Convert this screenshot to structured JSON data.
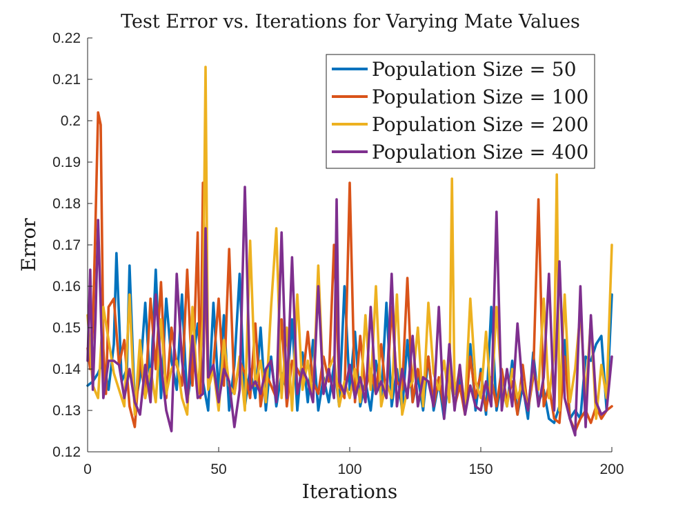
{
  "chart_data": {
    "type": "line",
    "title": "Test Error vs. Iterations for Varying Mate Values",
    "xlabel": "Iterations",
    "ylabel": "Error",
    "xlim": [
      0,
      200
    ],
    "ylim": [
      0.12,
      0.22
    ],
    "xticks": [
      0,
      50,
      100,
      150,
      200
    ],
    "xtick_labels": [
      "0",
      "50",
      "100",
      "150",
      "200"
    ],
    "yticks": [
      0.12,
      0.13,
      0.14,
      0.15,
      0.16,
      0.17,
      0.18,
      0.19,
      0.2,
      0.21,
      0.22
    ],
    "ytick_labels": [
      "0.12",
      "0.13",
      "0.14",
      "0.15",
      "0.16",
      "0.17",
      "0.18",
      "0.19",
      "0.2",
      "0.21",
      "0.22"
    ],
    "grid": false,
    "legend_position": "top-right",
    "series": [
      {
        "name": "Population Size = 50",
        "color": "#0072BD",
        "x": [
          0,
          2,
          4,
          6,
          8,
          10,
          11,
          13,
          15,
          16,
          18,
          20,
          22,
          24,
          26,
          28,
          30,
          32,
          34,
          36,
          38,
          40,
          42,
          44,
          46,
          48,
          50,
          52,
          54,
          56,
          58,
          60,
          62,
          64,
          66,
          68,
          70,
          72,
          74,
          76,
          78,
          80,
          82,
          84,
          86,
          88,
          90,
          92,
          94,
          96,
          98,
          100,
          102,
          104,
          106,
          108,
          110,
          112,
          114,
          116,
          118,
          120,
          122,
          124,
          126,
          128,
          130,
          132,
          134,
          136,
          138,
          140,
          142,
          144,
          146,
          148,
          150,
          152,
          154,
          156,
          158,
          160,
          162,
          164,
          166,
          168,
          170,
          172,
          174,
          176,
          178,
          180,
          182,
          184,
          186,
          188,
          190,
          192,
          194,
          196,
          198,
          200
        ],
        "y": [
          0.136,
          0.137,
          0.139,
          0.142,
          0.135,
          0.146,
          0.168,
          0.137,
          0.14,
          0.165,
          0.131,
          0.138,
          0.156,
          0.135,
          0.164,
          0.133,
          0.157,
          0.142,
          0.135,
          0.158,
          0.132,
          0.141,
          0.151,
          0.137,
          0.13,
          0.156,
          0.134,
          0.153,
          0.13,
          0.141,
          0.163,
          0.131,
          0.14,
          0.133,
          0.15,
          0.13,
          0.143,
          0.131,
          0.139,
          0.135,
          0.152,
          0.13,
          0.144,
          0.132,
          0.147,
          0.13,
          0.138,
          0.132,
          0.141,
          0.131,
          0.16,
          0.135,
          0.149,
          0.131,
          0.137,
          0.13,
          0.142,
          0.133,
          0.156,
          0.131,
          0.14,
          0.13,
          0.147,
          0.132,
          0.138,
          0.13,
          0.143,
          0.13,
          0.137,
          0.128,
          0.14,
          0.131,
          0.138,
          0.13,
          0.146,
          0.13,
          0.14,
          0.129,
          0.155,
          0.13,
          0.137,
          0.131,
          0.142,
          0.129,
          0.136,
          0.128,
          0.144,
          0.132,
          0.135,
          0.128,
          0.127,
          0.131,
          0.147,
          0.128,
          0.13,
          0.128,
          0.143,
          0.142,
          0.146,
          0.148,
          0.13,
          0.158
        ]
      },
      {
        "name": "Population Size = 100",
        "color": "#D95319",
        "x": [
          0,
          1,
          2,
          3,
          4,
          5,
          6,
          7,
          8,
          10,
          12,
          14,
          16,
          18,
          20,
          22,
          24,
          26,
          28,
          30,
          32,
          34,
          36,
          38,
          40,
          42,
          43,
          44,
          46,
          48,
          50,
          52,
          54,
          56,
          58,
          60,
          62,
          64,
          66,
          68,
          70,
          72,
          74,
          76,
          78,
          80,
          82,
          84,
          86,
          88,
          90,
          92,
          94,
          96,
          98,
          100,
          102,
          104,
          106,
          108,
          110,
          112,
          114,
          116,
          118,
          120,
          122,
          124,
          126,
          128,
          130,
          132,
          134,
          136,
          138,
          140,
          142,
          144,
          146,
          148,
          150,
          152,
          154,
          156,
          158,
          160,
          162,
          164,
          166,
          168,
          170,
          172,
          174,
          176,
          178,
          180,
          182,
          184,
          186,
          188,
          190,
          192,
          194,
          196,
          198,
          200
        ],
        "y": [
          0.145,
          0.14,
          0.15,
          0.175,
          0.202,
          0.199,
          0.145,
          0.134,
          0.155,
          0.157,
          0.141,
          0.147,
          0.131,
          0.126,
          0.143,
          0.133,
          0.157,
          0.14,
          0.161,
          0.133,
          0.15,
          0.141,
          0.136,
          0.164,
          0.136,
          0.173,
          0.133,
          0.185,
          0.136,
          0.141,
          0.157,
          0.136,
          0.169,
          0.134,
          0.142,
          0.139,
          0.133,
          0.151,
          0.131,
          0.139,
          0.136,
          0.133,
          0.152,
          0.131,
          0.142,
          0.14,
          0.137,
          0.149,
          0.137,
          0.134,
          0.143,
          0.137,
          0.17,
          0.136,
          0.133,
          0.185,
          0.132,
          0.148,
          0.135,
          0.14,
          0.134,
          0.146,
          0.133,
          0.155,
          0.137,
          0.135,
          0.162,
          0.132,
          0.14,
          0.134,
          0.143,
          0.131,
          0.138,
          0.13,
          0.141,
          0.131,
          0.136,
          0.129,
          0.143,
          0.133,
          0.139,
          0.13,
          0.138,
          0.131,
          0.14,
          0.132,
          0.137,
          0.129,
          0.141,
          0.13,
          0.138,
          0.181,
          0.131,
          0.136,
          0.128,
          0.127,
          0.143,
          0.128,
          0.125,
          0.128,
          0.13,
          0.127,
          0.131,
          0.128,
          0.13,
          0.131
        ]
      },
      {
        "name": "Population Size = 200",
        "color": "#EDB120",
        "x": [
          0,
          2,
          4,
          6,
          8,
          10,
          12,
          14,
          16,
          18,
          20,
          22,
          24,
          26,
          28,
          30,
          32,
          34,
          36,
          38,
          40,
          42,
          44,
          45,
          46,
          48,
          50,
          52,
          54,
          56,
          58,
          60,
          62,
          64,
          66,
          68,
          70,
          72,
          74,
          76,
          78,
          80,
          82,
          84,
          86,
          88,
          90,
          92,
          94,
          96,
          98,
          100,
          102,
          104,
          106,
          108,
          110,
          112,
          114,
          116,
          118,
          120,
          122,
          124,
          126,
          128,
          130,
          132,
          134,
          136,
          138,
          139,
          140,
          142,
          144,
          146,
          148,
          150,
          152,
          154,
          156,
          158,
          160,
          162,
          164,
          166,
          168,
          170,
          172,
          174,
          176,
          178,
          179,
          180,
          182,
          184,
          186,
          188,
          190,
          192,
          194,
          196,
          198,
          200
        ],
        "y": [
          0.153,
          0.136,
          0.133,
          0.155,
          0.147,
          0.139,
          0.135,
          0.131,
          0.158,
          0.129,
          0.147,
          0.133,
          0.14,
          0.132,
          0.152,
          0.134,
          0.14,
          0.142,
          0.133,
          0.129,
          0.155,
          0.134,
          0.152,
          0.213,
          0.135,
          0.14,
          0.13,
          0.147,
          0.136,
          0.134,
          0.143,
          0.13,
          0.171,
          0.136,
          0.142,
          0.132,
          0.155,
          0.174,
          0.133,
          0.15,
          0.13,
          0.158,
          0.135,
          0.142,
          0.133,
          0.165,
          0.135,
          0.14,
          0.143,
          0.131,
          0.137,
          0.133,
          0.14,
          0.132,
          0.153,
          0.135,
          0.16,
          0.131,
          0.137,
          0.133,
          0.158,
          0.129,
          0.135,
          0.137,
          0.15,
          0.131,
          0.156,
          0.139,
          0.135,
          0.142,
          0.132,
          0.186,
          0.134,
          0.14,
          0.131,
          0.157,
          0.137,
          0.133,
          0.149,
          0.132,
          0.155,
          0.136,
          0.131,
          0.14,
          0.133,
          0.137,
          0.13,
          0.14,
          0.135,
          0.157,
          0.133,
          0.144,
          0.187,
          0.13,
          0.158,
          0.132,
          0.14,
          0.154,
          0.133,
          0.152,
          0.128,
          0.141,
          0.133,
          0.17
        ]
      },
      {
        "name": "Population Size = 400",
        "color": "#7E2F8E",
        "x": [
          0,
          1,
          2,
          3,
          4,
          5,
          6,
          8,
          10,
          12,
          14,
          16,
          18,
          20,
          22,
          24,
          26,
          28,
          30,
          32,
          34,
          36,
          38,
          40,
          42,
          44,
          45,
          46,
          48,
          50,
          52,
          54,
          56,
          58,
          60,
          62,
          64,
          66,
          68,
          70,
          72,
          74,
          76,
          78,
          80,
          82,
          84,
          86,
          88,
          90,
          92,
          94,
          95,
          96,
          98,
          100,
          102,
          104,
          106,
          108,
          110,
          112,
          114,
          116,
          118,
          120,
          122,
          124,
          126,
          128,
          130,
          132,
          134,
          136,
          138,
          140,
          142,
          144,
          146,
          148,
          150,
          152,
          154,
          156,
          158,
          160,
          162,
          164,
          166,
          168,
          170,
          172,
          174,
          176,
          178,
          180,
          182,
          184,
          186,
          188,
          190,
          192,
          194,
          196,
          198,
          200
        ],
        "y": [
          0.142,
          0.164,
          0.135,
          0.152,
          0.176,
          0.155,
          0.133,
          0.142,
          0.142,
          0.141,
          0.133,
          0.14,
          0.132,
          0.129,
          0.141,
          0.132,
          0.158,
          0.141,
          0.13,
          0.125,
          0.163,
          0.142,
          0.132,
          0.148,
          0.133,
          0.134,
          0.174,
          0.138,
          0.141,
          0.132,
          0.14,
          0.137,
          0.126,
          0.135,
          0.184,
          0.135,
          0.137,
          0.134,
          0.14,
          0.142,
          0.132,
          0.173,
          0.133,
          0.167,
          0.134,
          0.14,
          0.137,
          0.132,
          0.16,
          0.134,
          0.14,
          0.133,
          0.181,
          0.137,
          0.134,
          0.141,
          0.133,
          0.138,
          0.132,
          0.155,
          0.134,
          0.137,
          0.133,
          0.163,
          0.131,
          0.14,
          0.133,
          0.148,
          0.131,
          0.138,
          0.137,
          0.131,
          0.155,
          0.128,
          0.146,
          0.13,
          0.141,
          0.129,
          0.136,
          0.131,
          0.13,
          0.137,
          0.131,
          0.178,
          0.13,
          0.14,
          0.131,
          0.151,
          0.135,
          0.13,
          0.142,
          0.131,
          0.138,
          0.163,
          0.13,
          0.166,
          0.133,
          0.128,
          0.124,
          0.16,
          0.126,
          0.153,
          0.132,
          0.129,
          0.13,
          0.143
        ]
      }
    ]
  }
}
